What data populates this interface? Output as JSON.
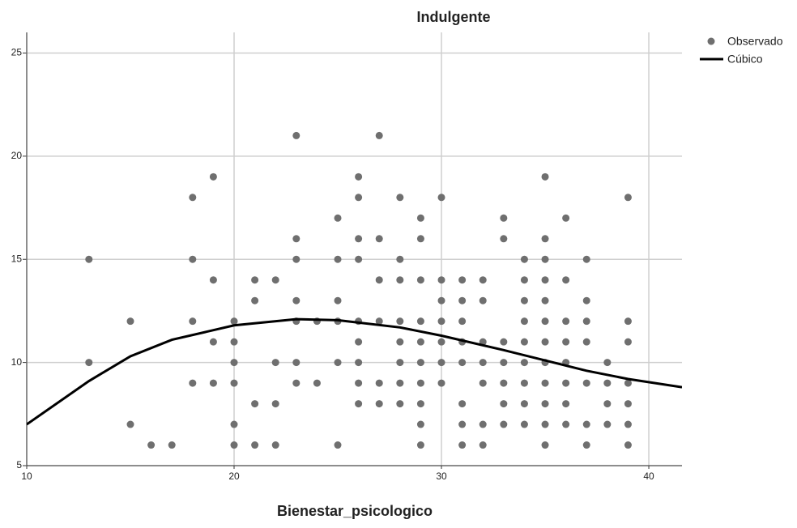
{
  "chart_data": {
    "type": "scatter",
    "title": "Indulgente",
    "x_label": "Bienestar_psicologico",
    "xlim": [
      10,
      41.6
    ],
    "ylim": [
      5,
      26
    ],
    "xticks": [
      10,
      20,
      30,
      40
    ],
    "yticks": [
      5,
      10,
      15,
      20,
      25
    ],
    "grid": true,
    "legend": "right",
    "series": [
      {
        "name": "Observado",
        "type": "scatter",
        "color": "#6f6f6f",
        "x": [
          13,
          13,
          15,
          15,
          16,
          17,
          18,
          18,
          18,
          18,
          19,
          19,
          19,
          19,
          20,
          20,
          20,
          20,
          20,
          20,
          21,
          21,
          21,
          21,
          22,
          22,
          22,
          22,
          23,
          23,
          23,
          23,
          23,
          23,
          23,
          24,
          24,
          25,
          25,
          25,
          25,
          25,
          25,
          26,
          26,
          26,
          26,
          26,
          26,
          26,
          26,
          26,
          27,
          27,
          27,
          27,
          27,
          27,
          28,
          28,
          28,
          28,
          28,
          28,
          28,
          28,
          29,
          29,
          29,
          29,
          29,
          29,
          29,
          29,
          29,
          29,
          30,
          30,
          30,
          30,
          30,
          30,
          30,
          31,
          31,
          31,
          31,
          31,
          31,
          31,
          31,
          32,
          32,
          32,
          32,
          32,
          32,
          32,
          33,
          33,
          33,
          33,
          33,
          33,
          33,
          34,
          34,
          34,
          34,
          34,
          34,
          34,
          34,
          34,
          35,
          35,
          35,
          35,
          35,
          35,
          35,
          35,
          35,
          35,
          35,
          35,
          36,
          36,
          36,
          36,
          36,
          36,
          36,
          36,
          37,
          37,
          37,
          37,
          37,
          37,
          37,
          38,
          38,
          38,
          38,
          39,
          39,
          39,
          39,
          39,
          39,
          39
        ],
        "values": [
          15,
          10,
          12,
          7,
          6,
          6,
          18,
          15,
          12,
          9,
          19,
          14,
          11,
          9,
          12,
          11,
          10,
          9,
          7,
          6,
          14,
          13,
          8,
          6,
          14,
          10,
          8,
          6,
          21,
          16,
          15,
          13,
          12,
          10,
          9,
          12,
          9,
          17,
          15,
          13,
          12,
          10,
          6,
          19,
          18,
          16,
          15,
          12,
          11,
          10,
          9,
          8,
          21,
          16,
          14,
          12,
          9,
          8,
          18,
          15,
          14,
          12,
          11,
          10,
          9,
          8,
          17,
          16,
          14,
          12,
          11,
          10,
          9,
          8,
          7,
          6,
          18,
          14,
          13,
          12,
          11,
          10,
          9,
          14,
          13,
          12,
          11,
          10,
          8,
          7,
          6,
          14,
          13,
          11,
          10,
          9,
          7,
          6,
          17,
          16,
          11,
          10,
          9,
          8,
          7,
          15,
          14,
          13,
          12,
          11,
          10,
          9,
          8,
          7,
          19,
          16,
          15,
          14,
          13,
          12,
          11,
          10,
          9,
          8,
          7,
          6,
          17,
          14,
          12,
          11,
          10,
          9,
          8,
          7,
          15,
          13,
          12,
          11,
          9,
          7,
          6,
          10,
          9,
          8,
          7,
          18,
          12,
          11,
          9,
          8,
          7,
          6
        ]
      },
      {
        "name": "Cúbico",
        "type": "line",
        "color": "#000000",
        "x": [
          10,
          13,
          15,
          17,
          20,
          23,
          25,
          28,
          30,
          33,
          35,
          37,
          39,
          41.6
        ],
        "values": [
          7.0,
          9.1,
          10.3,
          11.1,
          11.8,
          12.1,
          12.05,
          11.7,
          11.3,
          10.6,
          10.1,
          9.6,
          9.2,
          8.8
        ]
      }
    ]
  }
}
